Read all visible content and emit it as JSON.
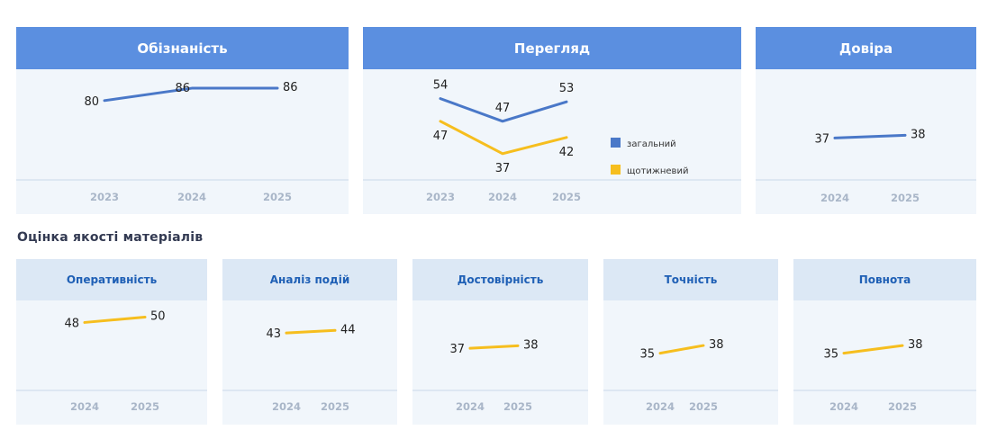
{
  "colors": {
    "general": "#4a78c8",
    "weekly": "#f6be1e",
    "tick": "#a9b6c8",
    "value": "#222222"
  },
  "section_title": "Оцінка якості матеріалів",
  "chart_data": [
    {
      "id": "awareness",
      "type": "line",
      "title": "Обізнаність",
      "x": [
        "2023",
        "2024",
        "2025"
      ],
      "series": [
        {
          "values": [
            80,
            86,
            86
          ],
          "color": "#4a78c8"
        }
      ],
      "ylim": [
        0,
        100
      ]
    },
    {
      "id": "viewing",
      "type": "line",
      "title": "Перегляд",
      "x": [
        "2023",
        "2024",
        "2025"
      ],
      "series": [
        {
          "name": "загальний",
          "values": [
            54,
            47,
            53
          ],
          "color": "#4a78c8"
        },
        {
          "name": "щотижневий",
          "values": [
            47,
            37,
            42
          ],
          "color": "#f6be1e"
        }
      ],
      "legend": "right",
      "ylim": [
        0,
        100
      ]
    },
    {
      "id": "trust",
      "type": "line",
      "title": "Довіра",
      "x": [
        "2024",
        "2025"
      ],
      "series": [
        {
          "values": [
            37,
            38
          ],
          "color": "#4a78c8"
        }
      ],
      "ylim": [
        0,
        100
      ]
    },
    {
      "id": "efficiency",
      "type": "line",
      "title": "Оперативність",
      "x": [
        "2024",
        "2025"
      ],
      "series": [
        {
          "values": [
            48,
            50
          ],
          "color": "#f6be1e"
        }
      ],
      "ylim": [
        0,
        100
      ]
    },
    {
      "id": "analysis",
      "type": "line",
      "title": "Аналіз подій",
      "x": [
        "2024",
        "2025"
      ],
      "series": [
        {
          "values": [
            43,
            44
          ],
          "color": "#f6be1e"
        }
      ],
      "ylim": [
        0,
        100
      ]
    },
    {
      "id": "reliability",
      "type": "line",
      "title": "Достовірність",
      "x": [
        "2024",
        "2025"
      ],
      "series": [
        {
          "values": [
            37,
            38
          ],
          "color": "#f6be1e"
        }
      ],
      "ylim": [
        0,
        100
      ]
    },
    {
      "id": "accuracy",
      "type": "line",
      "title": "Точність",
      "x": [
        "2024",
        "2025"
      ],
      "series": [
        {
          "values": [
            35,
            38
          ],
          "color": "#f6be1e"
        }
      ],
      "ylim": [
        0,
        100
      ]
    },
    {
      "id": "completeness",
      "type": "line",
      "title": "Повнота",
      "x": [
        "2024",
        "2025"
      ],
      "series": [
        {
          "values": [
            35,
            38
          ],
          "color": "#f6be1e"
        }
      ],
      "ylim": [
        0,
        100
      ]
    }
  ]
}
